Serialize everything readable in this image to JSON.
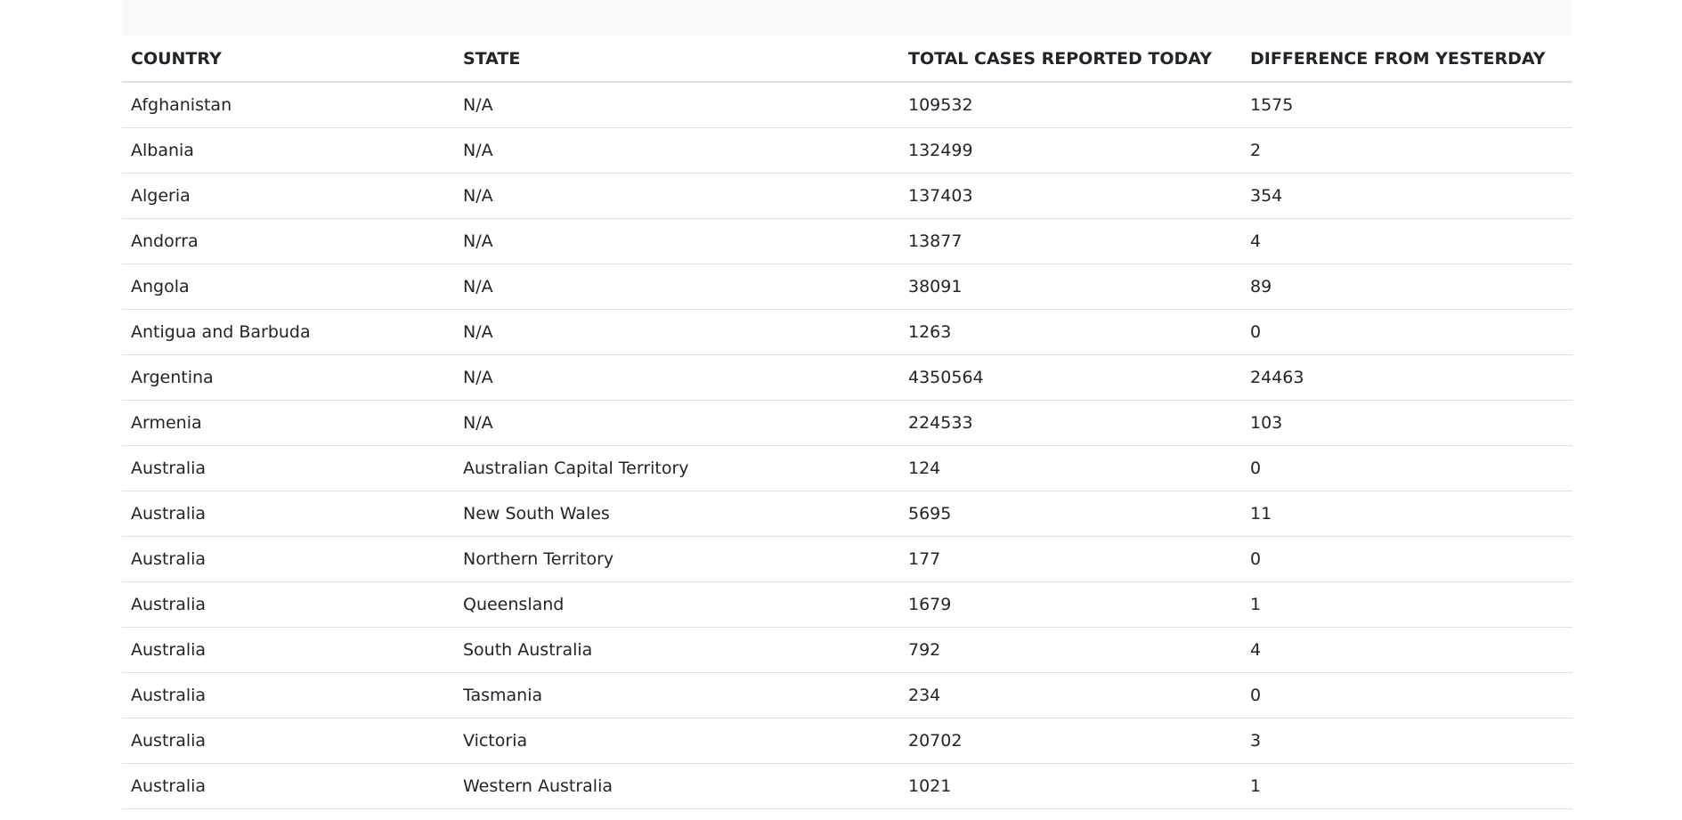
{
  "table": {
    "headers": [
      "COUNTRY",
      "STATE",
      "TOTAL CASES REPORTED TODAY",
      "DIFFERENCE FROM YESTERDAY"
    ],
    "rows": [
      [
        "Afghanistan",
        "N/A",
        "109532",
        "1575"
      ],
      [
        "Albania",
        "N/A",
        "132499",
        "2"
      ],
      [
        "Algeria",
        "N/A",
        "137403",
        "354"
      ],
      [
        "Andorra",
        "N/A",
        "13877",
        "4"
      ],
      [
        "Angola",
        "N/A",
        "38091",
        "89"
      ],
      [
        "Antigua and Barbuda",
        "N/A",
        "1263",
        "0"
      ],
      [
        "Argentina",
        "N/A",
        "4350564",
        "24463"
      ],
      [
        "Armenia",
        "N/A",
        "224533",
        "103"
      ],
      [
        "Australia",
        "Australian Capital Territory",
        "124",
        "0"
      ],
      [
        "Australia",
        "New South Wales",
        "5695",
        "11"
      ],
      [
        "Australia",
        "Northern Territory",
        "177",
        "0"
      ],
      [
        "Australia",
        "Queensland",
        "1679",
        "1"
      ],
      [
        "Australia",
        "South Australia",
        "792",
        "4"
      ],
      [
        "Australia",
        "Tasmania",
        "234",
        "0"
      ],
      [
        "Australia",
        "Victoria",
        "20702",
        "3"
      ],
      [
        "Australia",
        "Western Australia",
        "1021",
        "1"
      ]
    ]
  },
  "colors": {
    "top_band": "#f8f9fa",
    "border": "#dee2e6",
    "text": "#212529"
  }
}
